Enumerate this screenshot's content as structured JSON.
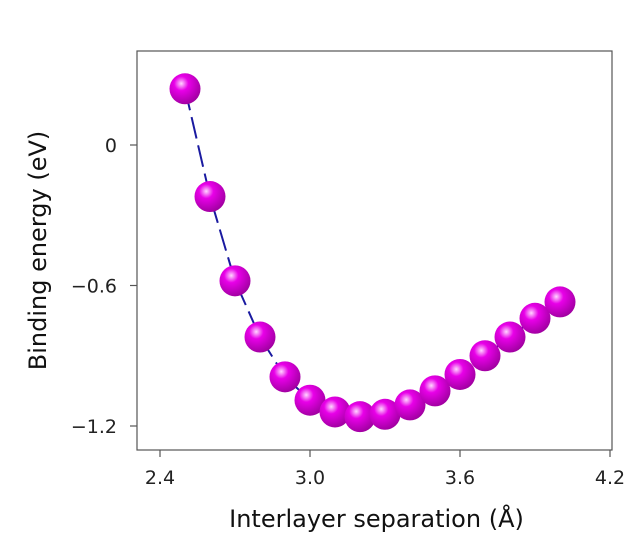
{
  "chart_data": {
    "type": "scatter",
    "title": "",
    "xlabel": "Interlayer separation (Å)",
    "ylabel": "Binding energy (eV)",
    "xlim": [
      2.4,
      4.2
    ],
    "ylim": [
      -1.32,
      0.4
    ],
    "xticks": [
      2.4,
      3.0,
      3.6,
      4.2
    ],
    "xtick_labels": [
      "2.4",
      "3.0",
      "3.6",
      "4.2"
    ],
    "yticks": [
      0,
      -0.6,
      -1.2
    ],
    "ytick_labels": [
      "0",
      "−0.6",
      "−1.2"
    ],
    "grid": false,
    "legend": "none",
    "series": [
      {
        "x": [
          2.5,
          2.6,
          2.7,
          2.8,
          2.9,
          3.0,
          3.1,
          3.2,
          3.3,
          3.4,
          3.5,
          3.6,
          3.7,
          3.8,
          3.9,
          4.0
        ],
        "y": [
          0.24,
          -0.22,
          -0.58,
          -0.82,
          -0.99,
          -1.09,
          -1.14,
          -1.16,
          -1.15,
          -1.11,
          -1.05,
          -0.98,
          -0.9,
          -0.82,
          -0.74,
          -0.67
        ],
        "marker_color": "#e800e8",
        "marker_highlight": "#ffd6ff",
        "line_color": "#1a1aa0",
        "line_style": "dashed"
      }
    ]
  }
}
